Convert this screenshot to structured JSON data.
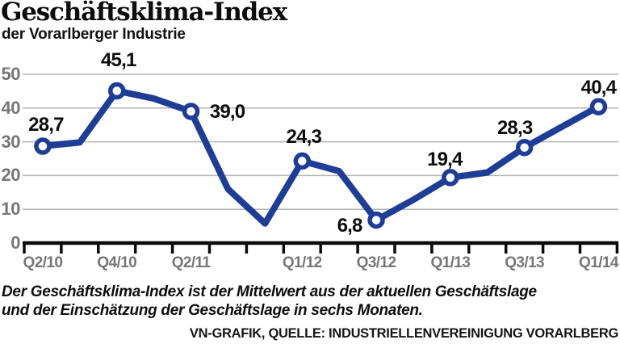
{
  "header": {
    "title": "Geschäftsklima-Index",
    "subtitle": "der Vorarlberger Industrie"
  },
  "chart_data": {
    "type": "line",
    "title": "Geschäftsklima-Index der Vorarlberger Industrie",
    "x": [
      "Q2/10",
      "Q3/10",
      "Q4/10",
      "Q1/11",
      "Q2/11",
      "Q3/11",
      "Q4/11",
      "Q1/12",
      "Q2/12",
      "Q3/12",
      "Q4/12",
      "Q1/13",
      "Q2/13",
      "Q3/13",
      "Q4/13",
      "Q1/14"
    ],
    "values": [
      28.7,
      29.8,
      45.1,
      42.8,
      39.0,
      16.0,
      5.8,
      24.3,
      21.3,
      6.8,
      12.8,
      19.4,
      20.9,
      28.3,
      34.4,
      40.4
    ],
    "labeled_points": [
      {
        "index": 0,
        "label": "28,7"
      },
      {
        "index": 2,
        "label": "45,1"
      },
      {
        "index": 4,
        "label": "39,0"
      },
      {
        "index": 7,
        "label": "24,3"
      },
      {
        "index": 9,
        "label": "6,8"
      },
      {
        "index": 11,
        "label": "19,4"
      },
      {
        "index": 13,
        "label": "28,3"
      },
      {
        "index": 15,
        "label": "40,4"
      }
    ],
    "xticks_shown": [
      {
        "index": 0,
        "label": "Q2/10"
      },
      {
        "index": 2,
        "label": "Q4/10"
      },
      {
        "index": 4,
        "label": "Q2/11"
      },
      {
        "index": 7,
        "label": "Q1/12"
      },
      {
        "index": 9,
        "label": "Q3/12"
      },
      {
        "index": 11,
        "label": "Q1/13"
      },
      {
        "index": 13,
        "label": "Q3/13"
      },
      {
        "index": 15,
        "label": "Q1/14"
      }
    ],
    "yticks": [
      50,
      40,
      30,
      20,
      10,
      0
    ],
    "ylim": [
      0,
      50
    ],
    "grid": true,
    "legend": false,
    "line_color": "#1e3d96",
    "grid_color": "#b4b4b4",
    "axis_color": "#0a0a0a",
    "tick_label_color": "#767676",
    "data_label_color": "#0d0d0d",
    "marker": "open-circle"
  },
  "footnote": {
    "line1": "Der Geschäftsklima-Index ist der Mittelwert aus der aktuellen Geschäftslage",
    "line2": "und der Einschätzung der Geschäftslage in sechs Monaten."
  },
  "credit": "VN-GRAFIK, QUELLE: INDUSTRIELLENVEREINIGUNG VORARLBERG"
}
